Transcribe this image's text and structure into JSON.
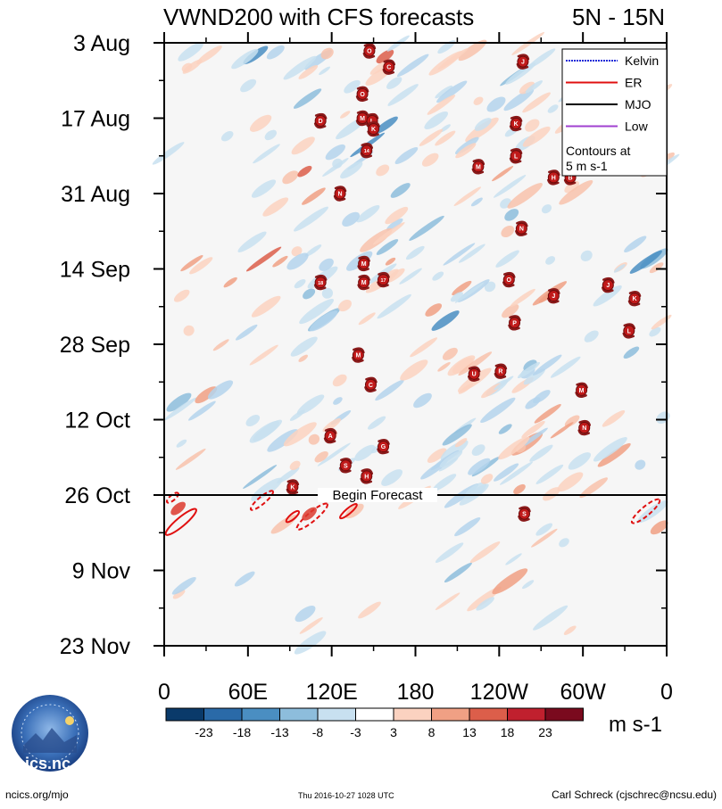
{
  "chart_data": {
    "type": "heatmap",
    "title": "VWND200 with CFS forecasts",
    "region": "5N - 15N",
    "x_ticks": [
      "0",
      "60E",
      "120E",
      "180",
      "120W",
      "60W",
      "0"
    ],
    "y_ticks": [
      "3 Aug",
      "17 Aug",
      "31 Aug",
      "14 Sep",
      "28 Sep",
      "12 Oct",
      "26 Oct",
      "9 Nov",
      "23 Nov"
    ],
    "xlim": [
      0,
      360
    ],
    "ylim_days": [
      0,
      112
    ],
    "forecast_label": "Begin Forecast",
    "forecast_day": 84,
    "legend": [
      {
        "label": "Kelvin",
        "color": "#1f2bd8",
        "style": "dashed"
      },
      {
        "label": "ER",
        "color": "#e01010",
        "style": "solid"
      },
      {
        "label": "MJO",
        "color": "#000000",
        "style": "solid"
      },
      {
        "label": "Low",
        "color": "#a040d0",
        "style": "solid"
      }
    ],
    "contour_note_line1": "Contours at",
    "contour_note_line2": "5 m s-1",
    "colorbar_labels": [
      "-23",
      "-18",
      "-13",
      "-8",
      "-3",
      "3",
      "8",
      "13",
      "18",
      "23"
    ],
    "colorbar_colors": [
      "#0a3a6a",
      "#2a6aa8",
      "#4a8ec2",
      "#8dbddc",
      "#c8e0f0",
      "#ffffff",
      "#fbd2c0",
      "#f0a084",
      "#dc5e4a",
      "#c0202e",
      "#7a0a1e"
    ],
    "units": "m s-1",
    "storms": [
      {
        "label": "O",
        "lon": 147,
        "day": 1.5
      },
      {
        "label": "C",
        "lon": 161,
        "day": 4.5
      },
      {
        "label": "J",
        "lon": 257,
        "day": 3.5
      },
      {
        "label": "O",
        "lon": 142,
        "day": 9.5
      },
      {
        "label": "D",
        "lon": 112,
        "day": 14.5
      },
      {
        "label": "M",
        "lon": 142,
        "day": 14
      },
      {
        "label": "L",
        "lon": 149,
        "day": 14.5
      },
      {
        "label": "K",
        "lon": 150,
        "day": 16
      },
      {
        "label": "K",
        "lon": 252,
        "day": 15
      },
      {
        "label": "14",
        "lon": 145,
        "day": 20
      },
      {
        "label": "L",
        "lon": 252,
        "day": 21
      },
      {
        "label": "M",
        "lon": 225,
        "day": 23
      },
      {
        "label": "H",
        "lon": 279,
        "day": 25
      },
      {
        "label": "B",
        "lon": 291,
        "day": 25
      },
      {
        "label": "N",
        "lon": 126,
        "day": 28
      },
      {
        "label": "N",
        "lon": 256,
        "day": 34.5
      },
      {
        "label": "M",
        "lon": 143,
        "day": 41
      },
      {
        "label": "18",
        "lon": 112,
        "day": 44.5
      },
      {
        "label": "M",
        "lon": 143,
        "day": 44.5
      },
      {
        "label": "17",
        "lon": 157,
        "day": 44
      },
      {
        "label": "O",
        "lon": 247,
        "day": 44
      },
      {
        "label": "J",
        "lon": 318,
        "day": 45
      },
      {
        "label": "J",
        "lon": 279,
        "day": 47
      },
      {
        "label": "K",
        "lon": 337,
        "day": 47.5
      },
      {
        "label": "P",
        "lon": 251,
        "day": 52
      },
      {
        "label": "L",
        "lon": 333,
        "day": 53.5
      },
      {
        "label": "M",
        "lon": 139,
        "day": 58
      },
      {
        "label": "U",
        "lon": 222,
        "day": 61.5
      },
      {
        "label": "R",
        "lon": 241,
        "day": 61
      },
      {
        "label": "C",
        "lon": 148,
        "day": 63.5
      },
      {
        "label": "M",
        "lon": 299,
        "day": 64.5
      },
      {
        "label": "N",
        "lon": 301,
        "day": 71.5
      },
      {
        "label": "A",
        "lon": 119,
        "day": 73
      },
      {
        "label": "G",
        "lon": 157,
        "day": 75
      },
      {
        "label": "S",
        "lon": 130,
        "day": 78.5
      },
      {
        "label": "H",
        "lon": 145,
        "day": 80.5
      },
      {
        "label": "S",
        "lon": 258,
        "day": 87.5
      },
      {
        "label": "K",
        "lon": 92,
        "day": 82.5
      }
    ]
  },
  "footer": {
    "logo_text": "cics.nc",
    "website": "ncics.org/mjo",
    "timestamp": "Thu 2016-10-27 1028 UTC",
    "author": "Carl Schreck (cjschrec@ncsu.edu)"
  }
}
